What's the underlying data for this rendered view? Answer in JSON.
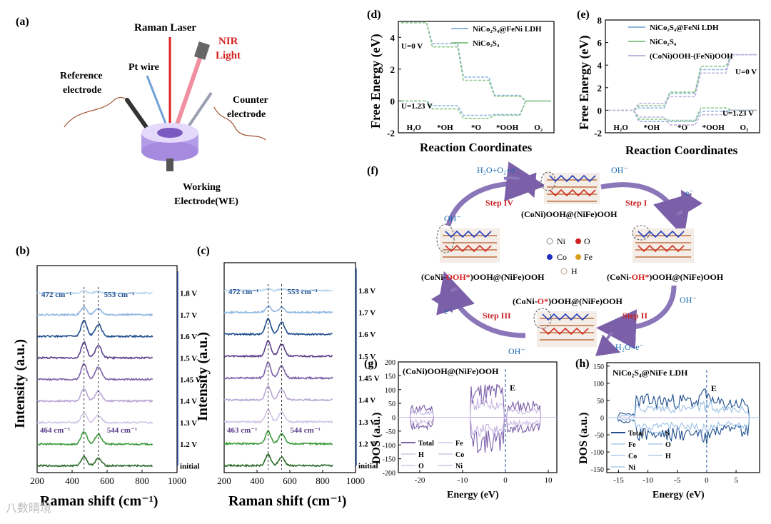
{
  "watermark": "八数晴境",
  "colors": {
    "blue": "#1f4e8c",
    "lightblue": "#8fb6e0",
    "green": "#3a9a3a",
    "lightgreen": "#8cc88c",
    "purple": "#5b3f8a",
    "lightpurple": "#c3b3dc",
    "violet": "#7b5fa8",
    "red": "#d62020"
  },
  "panel_a": {
    "label": "(a)",
    "raman_laser": "Raman Laser",
    "nir_line1": "NIR",
    "nir_line2": "Light",
    "pt_wire": "Pt wire",
    "ref_line1": "Reference",
    "ref_line2": "electrode",
    "counter_line1": "Counter",
    "counter_line2": "electrode",
    "working_line1": "Working",
    "working_line2": "Electrode(WE)"
  },
  "chart_data": [
    {
      "id": "b",
      "label": "(b)",
      "type": "line",
      "xlabel": "Raman shift (cm⁻¹)",
      "ylabel": "Intensity (a.u.)",
      "xlim": [
        200,
        1000
      ],
      "xticks": [
        "200",
        "400",
        "600",
        "800",
        "1000"
      ],
      "peaks_top": {
        "p1": "472 cm⁻¹",
        "p2": "553 cm⁻¹"
      },
      "peaks_bottom": {
        "p1": "464 cm⁻¹",
        "p2": "544 cm⁻¹"
      },
      "series": [
        {
          "name": "1.8 V",
          "amp": 0.15,
          "color": "#b7d4f0"
        },
        {
          "name": "1.7 V",
          "amp": 0.5,
          "color": "#8fb6e0"
        },
        {
          "name": "1.6 V",
          "amp": 1.0,
          "color": "#1f4e8c"
        },
        {
          "name": "1.5 V",
          "amp": 1.0,
          "color": "#5b3f8a"
        },
        {
          "name": "1.45 V",
          "amp": 1.0,
          "color": "#7b62a8"
        },
        {
          "name": "1.4 V",
          "amp": 0.8,
          "color": "#b9a7d6"
        },
        {
          "name": "1.3 V",
          "amp": 0.6,
          "color": "#d2c6e6"
        },
        {
          "name": "1.2 V",
          "amp": 0.8,
          "color": "#3a9a3a"
        },
        {
          "name": "initial",
          "amp": 0.6,
          "color": "#2a6a2a"
        }
      ]
    },
    {
      "id": "c",
      "label": "(c)",
      "type": "line",
      "xlabel": "Raman shift (cm⁻¹)",
      "ylabel": "Intensity (a.u.)",
      "xlim": [
        200,
        1000
      ],
      "xticks": [
        "200",
        "400",
        "600",
        "800",
        "1000"
      ],
      "peaks_top": {
        "p1": "472 cm⁻¹",
        "p2": "553 cm⁻¹"
      },
      "peaks_bottom": {
        "p1": "463 cm⁻¹",
        "p2": "544 cm⁻¹"
      },
      "series": [
        {
          "name": "1.8 V",
          "amp": 0.1,
          "color": "#b7d4f0"
        },
        {
          "name": "1.7 V",
          "amp": 0.4,
          "color": "#8fb6e0"
        },
        {
          "name": "1.6 V",
          "amp": 1.0,
          "color": "#1f4e8c"
        },
        {
          "name": "1.5 V",
          "amp": 1.0,
          "color": "#5b3f8a"
        },
        {
          "name": "1.45 V",
          "amp": 1.0,
          "color": "#7b62a8"
        },
        {
          "name": "1.4 V",
          "amp": 0.9,
          "color": "#b9a7d6"
        },
        {
          "name": "1.3 V",
          "amp": 0.8,
          "color": "#d2c6e6"
        },
        {
          "name": "1.2 V",
          "amp": 0.8,
          "color": "#3a9a3a"
        },
        {
          "name": "initial",
          "amp": 0.7,
          "color": "#2a6a2a"
        }
      ]
    },
    {
      "id": "d",
      "label": "(d)",
      "type": "line",
      "xlabel": "Reaction Coordinates",
      "ylabel": "Free Energy (eV)",
      "ylim": [
        -2,
        5
      ],
      "yticks": [
        "-2",
        "0",
        "2",
        "4"
      ],
      "categories": [
        "H₂O",
        "*OH",
        "*O",
        "*OOH",
        "O₂"
      ],
      "annot_u0": "U=0 V",
      "annot_u123": "U=1.23 V",
      "series": [
        {
          "name": "NiCo₂S₄@FeNi LDH",
          "u0": [
            4.92,
            3.6,
            1.5,
            0.35,
            0.0
          ],
          "u123": [
            0.0,
            -0.3,
            -0.9,
            -0.85,
            0.0
          ],
          "color": "#8fb6e0"
        },
        {
          "name": "NiCo₂S₄",
          "u0": [
            4.92,
            3.4,
            1.3,
            0.3,
            0.0
          ],
          "u123": [
            0.0,
            -0.5,
            -1.1,
            -0.9,
            0.0
          ],
          "color": "#8cc88c"
        }
      ]
    },
    {
      "id": "e",
      "label": "(e)",
      "type": "line",
      "xlabel": "Reaction Coordinates",
      "ylabel": "Free Energy (eV)",
      "ylim": [
        -2,
        8
      ],
      "yticks": [
        "-2",
        "0",
        "2",
        "4",
        "6",
        "8"
      ],
      "categories": [
        "H₂O",
        "*OH",
        "*O",
        "*OOH",
        "O₂"
      ],
      "annot_u0": "U=0 V",
      "annot_u123": "U=1.23 V",
      "series": [
        {
          "name": "NiCo₂S₄@FeNi LDH",
          "u0": [
            0.0,
            0.2,
            1.5,
            3.6,
            4.92
          ],
          "u123": [
            0.0,
            -1.0,
            -1.0,
            -0.1,
            0.0
          ],
          "color": "#8fb6e0"
        },
        {
          "name": "NiCo₂S₄",
          "u0": [
            0.0,
            0.4,
            1.6,
            3.9,
            4.92
          ],
          "u123": [
            0.0,
            -0.8,
            -0.9,
            0.2,
            0.0
          ],
          "color": "#8cc88c"
        },
        {
          "name": "(CoNi)OOH-(FeNi)OOH",
          "u0": [
            0.0,
            0.6,
            1.2,
            3.3,
            4.92
          ],
          "u123": [
            0.0,
            -0.6,
            -1.3,
            -0.4,
            0.0
          ],
          "color": "#c3b3dc"
        }
      ]
    },
    {
      "id": "g",
      "label": "(g)",
      "type": "line",
      "title": "(CoNi)OOH@(NiFe)OOH",
      "xlabel": "Energy (eV)",
      "ylabel": "DOS (a.u.)",
      "xlim": [
        -25,
        12
      ],
      "ylim": [
        -200,
        200
      ],
      "xticks": [
        "-20",
        "-10",
        "0",
        "10"
      ],
      "yticks": [
        "200",
        "150",
        "100",
        "50",
        "0",
        "-50",
        "-100",
        "-150",
        "-200"
      ],
      "ef": "E",
      "legend": [
        "Total",
        "Fe",
        "H",
        "Co",
        "O",
        "Ni"
      ]
    },
    {
      "id": "h",
      "label": "(h)",
      "type": "line",
      "title": "NiCo₂S₄@NiFe LDH",
      "xlabel": "Energy (eV)",
      "ylabel": "DOS (a.u.)",
      "xlim": [
        -17,
        9
      ],
      "ylim": [
        -160,
        160
      ],
      "xticks": [
        "-15",
        "-10",
        "-5",
        "0",
        "5"
      ],
      "yticks": [
        "150",
        "100",
        "50",
        "0",
        "-50",
        "-100",
        "-150"
      ],
      "ef": "E",
      "legend": [
        "Total",
        "S",
        "Fe",
        "O",
        "Co",
        "H",
        "Ni"
      ]
    }
  ],
  "panel_f": {
    "label": "(f)",
    "step1": "Step I",
    "step2": "Step II",
    "step3": "Step III",
    "step4": "Step IV",
    "center_top": "(CoNi)OOH@(NiFe)OOH",
    "left_a": "(CoNi-",
    "left_b": "OOH*",
    "left_c": ")OOH@(NiFe)OOH",
    "right_a": "(CoNi-",
    "right_b": "OH*",
    "right_c": ")OOH@(NiFe)OOH",
    "bottom_a": "(CoNi-",
    "bottom_b": "O*",
    "bottom_c": ")OOH@(NiFe)OOH",
    "h2o_o2": "H₂O+O₂+e⁻",
    "oh_top": "OH⁻",
    "e_right": "e⁻",
    "oh_left": "OH⁻",
    "oh_right": "OH⁻",
    "e_left": "e⁻",
    "oh_bottom": "OH⁻",
    "h2o_e": "H₂O+e⁻",
    "legend": {
      "ni": "Ni",
      "o": "O",
      "co": "Co",
      "fe": "Fe",
      "h": "H"
    }
  }
}
